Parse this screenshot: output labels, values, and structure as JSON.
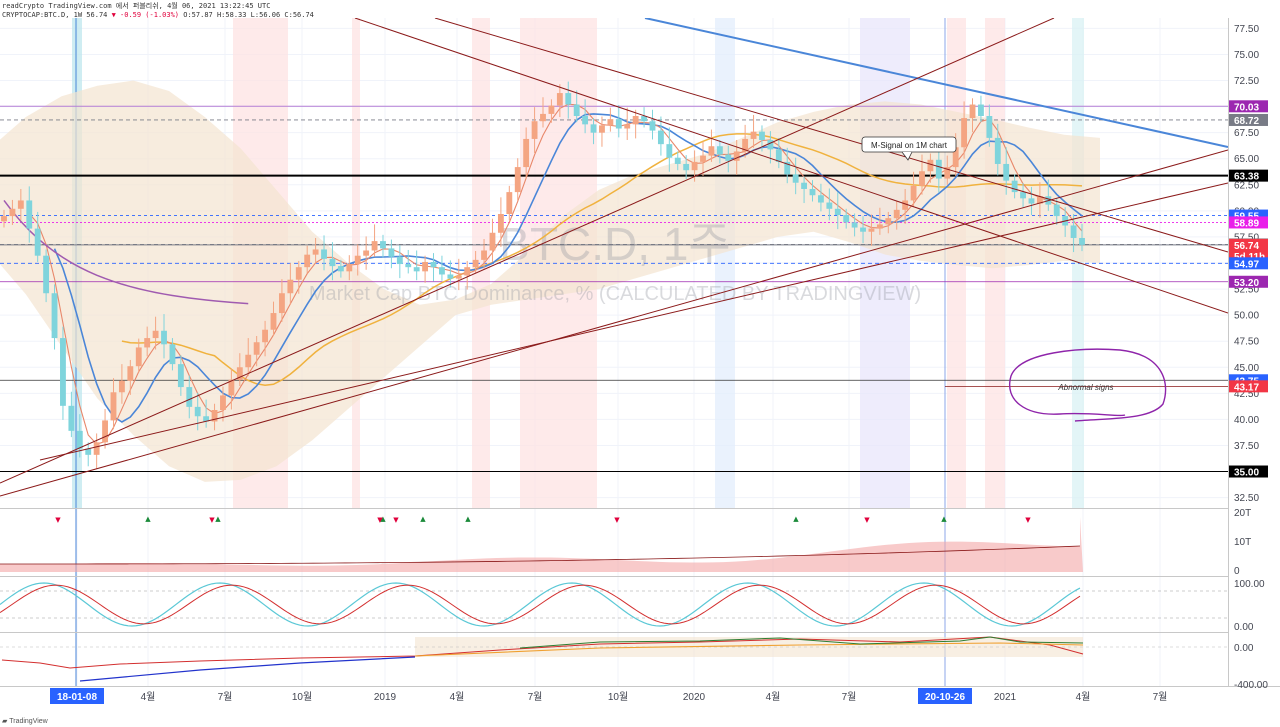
{
  "header": {
    "line1": "readCrypto TradingView.com 에서 퍼블리쉬, 4월 06, 2021 13:22:45 UTC",
    "symbol": "CRYPTOCAP:BTC.D, 1W",
    "last": "56.74",
    "change": "▼ -0.59 (-1.03%)",
    "ohlc": "O:57.87 H:58.33 L:56.06 C:56.74"
  },
  "watermark": {
    "symbol": "BTC.D, 1주",
    "description": "Market Cap BTC Dominance, % (CALCULATED BY TRADINGVIEW)"
  },
  "annotations": {
    "m_signal": "M-Signal on 1M chart",
    "abnormal": "Abnormal signs"
  },
  "footer": {
    "brand": "TradingView"
  },
  "colors": {
    "up": "#f4a582",
    "down": "#7fd4dc",
    "trend_blue": "#4a86d8",
    "trend_brown": "#8b1a1a",
    "ma_purple": "#a05bb0",
    "ma_orange": "#f0b23e",
    "cloud": "#f3e4d0"
  },
  "chart_data": {
    "type": "candlestick",
    "x_axis_labels": [
      "18-01-08",
      "4월",
      "7월",
      "10월",
      "2019",
      "4월",
      "7월",
      "10월",
      "2020",
      "4월",
      "7월",
      "20-10-26",
      "2021",
      "4월",
      "7월"
    ],
    "y_ticks": [
      77.5,
      75,
      72.5,
      70,
      67.5,
      65,
      62.5,
      60,
      57.5,
      55,
      52.5,
      50,
      47.5,
      45,
      42.5,
      40,
      37.5,
      35,
      32.5
    ],
    "y_range": [
      31.5,
      78.5
    ],
    "price_tags": [
      {
        "label": "70.03",
        "value": 70.03,
        "color": "#9c27b0"
      },
      {
        "label": "68.72",
        "value": 68.72,
        "color": "#787b86"
      },
      {
        "label": "63.38",
        "value": 63.38,
        "color": "#000000"
      },
      {
        "label": "59.55",
        "value": 59.55,
        "color": "#2962ff"
      },
      {
        "label": "58.89",
        "value": 58.89,
        "color": "#e91ee9"
      },
      {
        "label": "56.78",
        "value": 56.78,
        "color": "#787b86"
      },
      {
        "label": "56.74",
        "value": 56.74,
        "color": "#f23645",
        "sub": "5d 11h"
      },
      {
        "label": "54.97",
        "value": 54.97,
        "color": "#2962ff"
      },
      {
        "label": "53.20",
        "value": 53.2,
        "color": "#9c27b0"
      },
      {
        "label": "43.75",
        "value": 43.75,
        "color": "#2962ff"
      },
      {
        "label": "43.17",
        "value": 43.17,
        "color": "#f23645"
      },
      {
        "label": "35.00",
        "value": 35.0,
        "color": "#000000"
      }
    ],
    "weekly_close": [
      59.5,
      60.2,
      61.0,
      58.3,
      55.7,
      52.1,
      47.8,
      41.3,
      38.9,
      37.2,
      36.6,
      37.8,
      39.9,
      42.6,
      43.7,
      45.1,
      46.9,
      47.8,
      48.5,
      47.2,
      45.3,
      43.1,
      41.2,
      40.3,
      39.8,
      40.9,
      42.3,
      43.8,
      45.0,
      46.2,
      47.4,
      48.6,
      50.2,
      52.1,
      53.4,
      54.6,
      55.8,
      56.3,
      55.4,
      54.7,
      54.2,
      54.9,
      55.7,
      56.2,
      57.1,
      56.4,
      55.6,
      54.9,
      54.6,
      54.2,
      55.1,
      54.6,
      53.9,
      53.5,
      53.8,
      54.6,
      55.3,
      56.2,
      57.9,
      59.7,
      61.8,
      64.2,
      66.9,
      68.6,
      69.3,
      70.1,
      71.3,
      70.2,
      69.1,
      68.3,
      67.5,
      68.2,
      68.8,
      67.9,
      68.3,
      69.1,
      68.6,
      67.7,
      66.4,
      65.1,
      64.5,
      63.9,
      64.7,
      65.3,
      66.2,
      65.4,
      64.8,
      65.7,
      66.9,
      67.6,
      66.8,
      65.9,
      64.7,
      63.5,
      62.7,
      62.1,
      61.5,
      60.8,
      60.2,
      59.6,
      58.9,
      58.4,
      58.0,
      58.3,
      58.7,
      59.3,
      60.1,
      61.0,
      62.4,
      63.8,
      64.9,
      63.1,
      64.2,
      66.1,
      68.9,
      70.2,
      69.1,
      67.0,
      64.5,
      62.9,
      61.8,
      61.2,
      60.7,
      61.4,
      60.6,
      59.5,
      58.6,
      57.4,
      56.74
    ],
    "kumo_upper_approx": [
      66,
      69,
      71,
      72,
      72.5,
      71.5,
      69,
      66,
      62,
      58,
      55,
      52.5,
      51,
      51.5,
      53,
      56,
      59.5,
      62,
      63.5,
      64.5,
      65.5,
      67,
      68.5,
      69.5,
      70.2,
      70.5,
      70.2,
      69.5,
      68.8,
      68,
      67.3,
      67
    ],
    "kumo_lower_approx": [
      56,
      52,
      47,
      42,
      38.5,
      35.5,
      34,
      34.2,
      35.5,
      38,
      41,
      44,
      47,
      50,
      51,
      51.5,
      52,
      52.5,
      53.5,
      54.5,
      55.5,
      56.5,
      57.5,
      58,
      57,
      55.8,
      55.2,
      54.8,
      54.5,
      54.8,
      55.2,
      55
    ],
    "osc1_ticks": [
      "20T",
      "10T",
      "0"
    ],
    "osc2_ticks": [
      "100.00",
      "0.00"
    ],
    "osc3_ticks": [
      "0.00",
      "-400.00"
    ]
  }
}
